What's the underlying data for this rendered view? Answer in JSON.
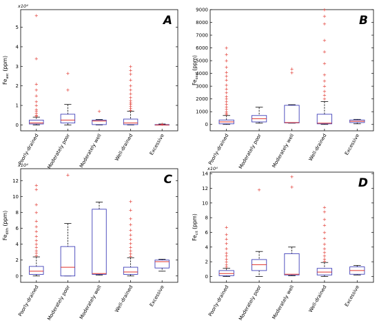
{
  "chart_data": [
    {
      "type": "box",
      "panel": "A",
      "ylabel_main": "Fe",
      "ylabel_sub": "asc",
      "ylabel_unit": " (ppm)",
      "exponent": "x10⁴",
      "ylim": [
        -0.3,
        5.9
      ],
      "yticks": [
        0,
        1,
        2,
        3,
        4,
        5
      ],
      "categories": [
        "Poorly-drained",
        "Moderately poor",
        "Moderately well",
        "Well-drained",
        "Excessive"
      ],
      "boxes": [
        {
          "whisker_low": 0,
          "q1": 0.05,
          "median": 0.1,
          "q3": 0.25,
          "whisker_high": 0.4,
          "outliers": [
            0.45,
            0.5,
            0.6,
            0.7,
            0.8,
            1.0,
            1.2,
            1.5,
            1.8,
            2.1,
            3.4,
            5.6
          ]
        },
        {
          "whisker_low": 0,
          "q1": 0.1,
          "median": 0.25,
          "q3": 0.55,
          "whisker_high": 1.05,
          "outliers": [
            1.8,
            2.65
          ]
        },
        {
          "whisker_low": 0,
          "q1": 0.02,
          "median": 0.2,
          "q3": 0.25,
          "whisker_high": 0.28,
          "outliers": [
            0.7
          ]
        },
        {
          "whisker_low": 0,
          "q1": 0.02,
          "median": 0.1,
          "q3": 0.3,
          "whisker_high": 0.7,
          "outliers": [
            0.75,
            0.85,
            0.95,
            1.05,
            1.15,
            1.25,
            1.4,
            1.6,
            1.8,
            2.0,
            2.3,
            2.6,
            2.8,
            3.0
          ]
        },
        {
          "whisker_low": 0,
          "q1": 0,
          "median": 0,
          "q3": 0.02,
          "whisker_high": 0.05,
          "outliers": [
            0.05
          ]
        }
      ]
    },
    {
      "type": "box",
      "panel": "B",
      "ylabel_main": "Fe",
      "ylabel_sub": "oxal",
      "ylabel_unit": " (ppm)",
      "exponent": "",
      "ylim": [
        -500,
        9000
      ],
      "yticks": [
        0,
        1000,
        2000,
        3000,
        4000,
        5000,
        6000,
        7000,
        8000,
        9000
      ],
      "categories": [
        "Poorly-drained",
        "Moderately poor",
        "Moderately well",
        "Well-drained",
        "Excessive"
      ],
      "boxes": [
        {
          "whisker_low": 0,
          "q1": 50,
          "median": 200,
          "q3": 350,
          "whisker_high": 700,
          "outliers": [
            800,
            900,
            1000,
            1200,
            1400,
            1600,
            1800,
            2000,
            2200,
            2500,
            2800,
            3100,
            3500,
            3800,
            4100,
            4500,
            5000,
            5500,
            6000
          ]
        },
        {
          "whisker_low": 100,
          "q1": 200,
          "median": 450,
          "q3": 700,
          "whisker_high": 1350,
          "outliers": []
        },
        {
          "whisker_low": 100,
          "q1": 120,
          "median": 150,
          "q3": 1500,
          "whisker_high": 1550,
          "outliers": [
            4050,
            4350
          ]
        },
        {
          "whisker_low": 0,
          "q1": 50,
          "median": 100,
          "q3": 800,
          "whisker_high": 1800,
          "outliers": [
            2000,
            2300,
            2600,
            3000,
            3400,
            3900,
            4800,
            5700,
            6600,
            7900,
            8500,
            9000
          ]
        },
        {
          "whisker_low": 50,
          "q1": 150,
          "median": 250,
          "q3": 350,
          "whisker_high": 400,
          "outliers": []
        }
      ]
    },
    {
      "type": "box",
      "panel": "C",
      "ylabel_main": "Fe",
      "ylabel_sub": "dith",
      "ylabel_unit": " (ppm)",
      "exponent": "x10⁴",
      "ylim": [
        -0.8,
        13.5
      ],
      "yticks": [
        0,
        2,
        4,
        6,
        8,
        10,
        12
      ],
      "categories": [
        "Poorly-drained",
        "Moderately poor",
        "Moderately well",
        "Well-drained",
        "Excessive"
      ],
      "boxes": [
        {
          "whisker_low": 0,
          "q1": 0.2,
          "median": 0.6,
          "q3": 1.2,
          "whisker_high": 2.4,
          "outliers": [
            2.6,
            2.9,
            3.2,
            3.6,
            4.0,
            4.5,
            5.0,
            5.6,
            6.2,
            6.9,
            8.0,
            9.0,
            10.9,
            11.4
          ]
        },
        {
          "whisker_low": 0,
          "q1": 0,
          "median": 1.1,
          "q3": 3.7,
          "whisker_high": 6.6,
          "outliers": [
            12.7
          ]
        },
        {
          "whisker_low": 0.1,
          "q1": 0.2,
          "median": 0.3,
          "q3": 8.4,
          "whisker_high": 9.3,
          "outliers": []
        },
        {
          "whisker_low": 0,
          "q1": 0.2,
          "median": 0.5,
          "q3": 1.1,
          "whisker_high": 2.3,
          "outliers": [
            2.5,
            2.8,
            3.2,
            3.6,
            4.1,
            4.6,
            5.2,
            5.8,
            6.5,
            7.2,
            8.3,
            9.4
          ]
        },
        {
          "whisker_low": 0.6,
          "q1": 1.0,
          "median": 1.8,
          "q3": 2.0,
          "whisker_high": 2.1,
          "outliers": []
        }
      ]
    },
    {
      "type": "box",
      "panel": "D",
      "ylabel_main": "Fe",
      "ylabel_sub": "cit",
      "ylabel_unit": " (ppm)",
      "exponent": "x10⁴",
      "ylim": [
        -0.8,
        14.2
      ],
      "yticks": [
        0,
        2,
        4,
        6,
        8,
        10,
        12,
        14
      ],
      "categories": [
        "Poorly-drained",
        "Moderately poor",
        "Moderately well",
        "Well-drained",
        "Excessive"
      ],
      "boxes": [
        {
          "whisker_low": 0,
          "q1": 0.1,
          "median": 0.4,
          "q3": 0.8,
          "whisker_high": 1.1,
          "outliers": [
            1.3,
            1.6,
            2.0,
            2.4,
            2.8,
            3.2,
            3.8,
            4.5,
            5.1,
            5.7,
            6.7
          ]
        },
        {
          "whisker_low": 0,
          "q1": 0.8,
          "median": 1.6,
          "q3": 2.3,
          "whisker_high": 3.4,
          "outliers": [
            11.8
          ]
        },
        {
          "whisker_low": 0.1,
          "q1": 0.2,
          "median": 0.3,
          "q3": 3.1,
          "whisker_high": 4.0,
          "outliers": [
            12.2,
            13.6
          ]
        },
        {
          "whisker_low": 0,
          "q1": 0.2,
          "median": 0.6,
          "q3": 1.1,
          "whisker_high": 1.9,
          "outliers": [
            2.1,
            2.4,
            2.8,
            3.3,
            3.8,
            4.4,
            5.2,
            6.0,
            7.0,
            7.8,
            8.8,
            9.4
          ]
        },
        {
          "whisker_low": 0.2,
          "q1": 0.3,
          "median": 0.8,
          "q3": 1.3,
          "whisker_high": 1.5,
          "outliers": []
        }
      ]
    }
  ]
}
